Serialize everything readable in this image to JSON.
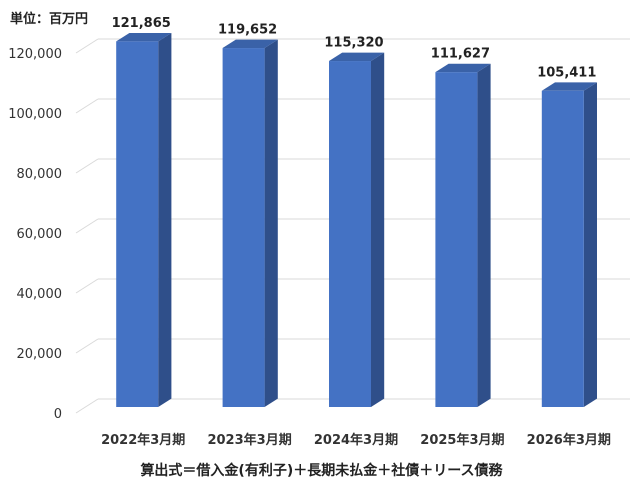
{
  "unit_label": "単位：百万円",
  "footnote": "算出式＝借入金(有利子)＋長期未払金＋社債＋リース債務",
  "chart_data": {
    "type": "bar",
    "categories": [
      "2022年3月期",
      "2023年3月期",
      "2024年3月期",
      "2025年3月期",
      "2026年3月期"
    ],
    "values": [
      121865,
      119652,
      115320,
      111627,
      105411
    ],
    "value_labels": [
      "121,865",
      "119,652",
      "115,320",
      "111,627",
      "105,411"
    ],
    "ylim": [
      0,
      120000
    ],
    "yticks": [
      0,
      20000,
      40000,
      60000,
      80000,
      100000,
      120000
    ],
    "ytick_labels": [
      "0",
      "20,000",
      "40,000",
      "60,000",
      "80,000",
      "100,000",
      "120,000"
    ],
    "grid": true,
    "style": "3d",
    "colors": {
      "front": "#4472C4",
      "side": "#2F4F8A",
      "top": "#3A62A8",
      "grid": "#D9D9D9"
    }
  }
}
